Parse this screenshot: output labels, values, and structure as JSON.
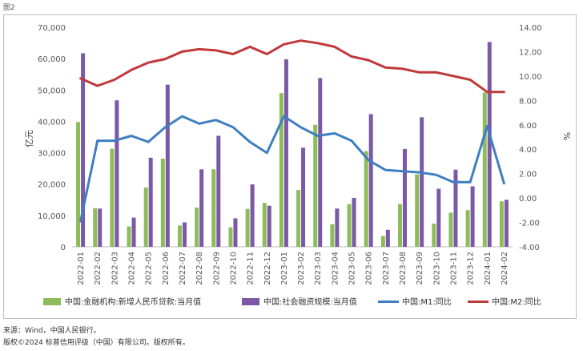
{
  "figure_label": "图2",
  "source_note": "来源：Wind，中国人民银行。",
  "copyright_note": "版权©2024 标普信用评级（中国）有限公司。版权所有。",
  "colors": {
    "loans": "#8fbc5a",
    "tsf": "#7b59a6",
    "m1": "#3f7fc1",
    "m2": "#c0393b"
  },
  "chart_data": {
    "type": "bar",
    "title": "",
    "categories": [
      "2022-01",
      "2022-02",
      "2022-03",
      "2022-04",
      "2022-05",
      "2022-06",
      "2022-07",
      "2022-08",
      "2022-09",
      "2022-10",
      "2022-11",
      "2022-12",
      "2023-01",
      "2023-02",
      "2023-03",
      "2023-04",
      "2023-05",
      "2023-06",
      "2023-07",
      "2023-08",
      "2023-09",
      "2023-10",
      "2023-11",
      "2023-12",
      "2024-01",
      "2024-02"
    ],
    "ylabel_left": "亿元",
    "ylabel_right": "%",
    "ylim_left": [
      0,
      70000
    ],
    "ylim_right": [
      -4,
      14
    ],
    "yticks_left": [
      "0",
      "10,000",
      "20,000",
      "30,000",
      "40,000",
      "50,000",
      "60,000",
      "70,000"
    ],
    "yticks_right": [
      "-4.00",
      "-2.00",
      "0.00",
      "2.00",
      "4.00",
      "6.00",
      "8.00",
      "10.00",
      "12.00",
      "14.00"
    ],
    "grid": false,
    "legend_position": "bottom",
    "series": [
      {
        "name": "中国:金融机构:新增人民币贷款:当月值",
        "kind": "bar",
        "axis": "left",
        "values": [
          39800,
          12300,
          31300,
          6500,
          18900,
          28100,
          6800,
          12500,
          24700,
          6200,
          12100,
          14000,
          49000,
          18100,
          38900,
          7200,
          13600,
          30500,
          3500,
          13600,
          23100,
          7400,
          10900,
          11700,
          49200,
          14500
        ]
      },
      {
        "name": "中国:社会融资规模:当月值",
        "kind": "bar",
        "axis": "left",
        "values": [
          61700,
          12200,
          46700,
          9300,
          28400,
          51700,
          7800,
          24700,
          35400,
          9100,
          19900,
          13100,
          59800,
          31600,
          53800,
          12200,
          15600,
          42300,
          5400,
          31200,
          41300,
          18500,
          24600,
          19300,
          65300,
          15000
        ]
      },
      {
        "name": "中国:M1:同比",
        "kind": "line",
        "axis": "right",
        "values": [
          -1.9,
          4.7,
          4.7,
          5.1,
          4.6,
          5.8,
          6.7,
          6.1,
          6.4,
          5.8,
          4.6,
          3.7,
          6.7,
          5.8,
          5.1,
          5.3,
          4.7,
          3.1,
          2.3,
          2.2,
          2.1,
          1.9,
          1.3,
          1.3,
          5.9,
          1.2
        ]
      },
      {
        "name": "中国:M2:同比",
        "kind": "line",
        "axis": "right",
        "values": [
          9.8,
          9.2,
          9.7,
          10.5,
          11.1,
          11.4,
          12.0,
          12.2,
          12.1,
          11.8,
          12.4,
          11.8,
          12.6,
          12.9,
          12.7,
          12.4,
          11.6,
          11.3,
          10.7,
          10.6,
          10.3,
          10.3,
          10.0,
          9.7,
          8.7,
          8.7
        ]
      }
    ]
  }
}
